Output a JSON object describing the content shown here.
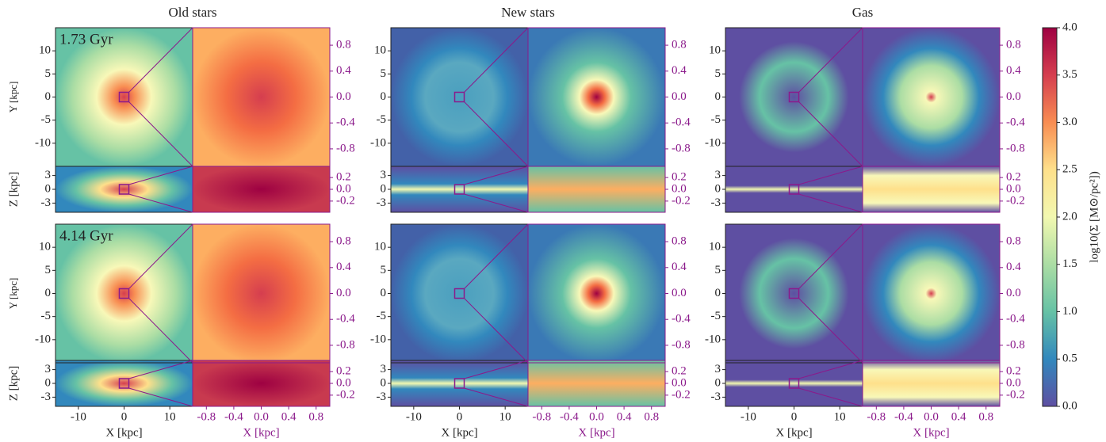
{
  "chart_data": {
    "type": "image-grid",
    "columns": [
      "Old stars",
      "New stars",
      "Gas"
    ],
    "rows": [
      "1.73 Gyr",
      "4.14 Gyr"
    ],
    "xlabel": "X [kpc]",
    "ylabel": "Y [kpc]",
    "zlabel": "Z [kpc]",
    "zoom_xlabel": "X [kpc]",
    "xlim": [
      -15,
      15
    ],
    "xticks": [
      -10,
      0,
      10
    ],
    "ylim": [
      -15,
      15
    ],
    "yticks": [
      -10,
      -5,
      0,
      5,
      10
    ],
    "zlim": [
      -5,
      5
    ],
    "zticks": [
      -3,
      0,
      3
    ],
    "zoom_xlim": [
      -1,
      1
    ],
    "zoom_xticks": [
      -0.8,
      -0.4,
      {
        "value": 0,
        "label": "0.0"
      },
      0.4,
      0.8
    ],
    "zoom_ylim": [
      -1.07,
      1.07
    ],
    "zoom_yticks": [
      -0.8,
      -0.4,
      {
        "value": 0,
        "label": "0.0"
      },
      0.4,
      0.8
    ],
    "zoom_zlim": [
      -0.39,
      0.39
    ],
    "zoom_zticks": [
      -0.2,
      {
        "value": 0,
        "label": "0.0"
      },
      0.2
    ],
    "colorbar": {
      "label": "log10(Σ [M⊙/pc²])",
      "lim": [
        0,
        4
      ],
      "ticks": [
        {
          "value": 0,
          "label": "0.0"
        },
        0.5,
        {
          "value": 1,
          "label": "1.0"
        },
        1.5,
        {
          "value": 2,
          "label": "2.0"
        },
        2.5,
        {
          "value": 3,
          "label": "3.0"
        },
        3.5,
        {
          "value": 4,
          "label": "4.0"
        }
      ]
    }
  }
}
